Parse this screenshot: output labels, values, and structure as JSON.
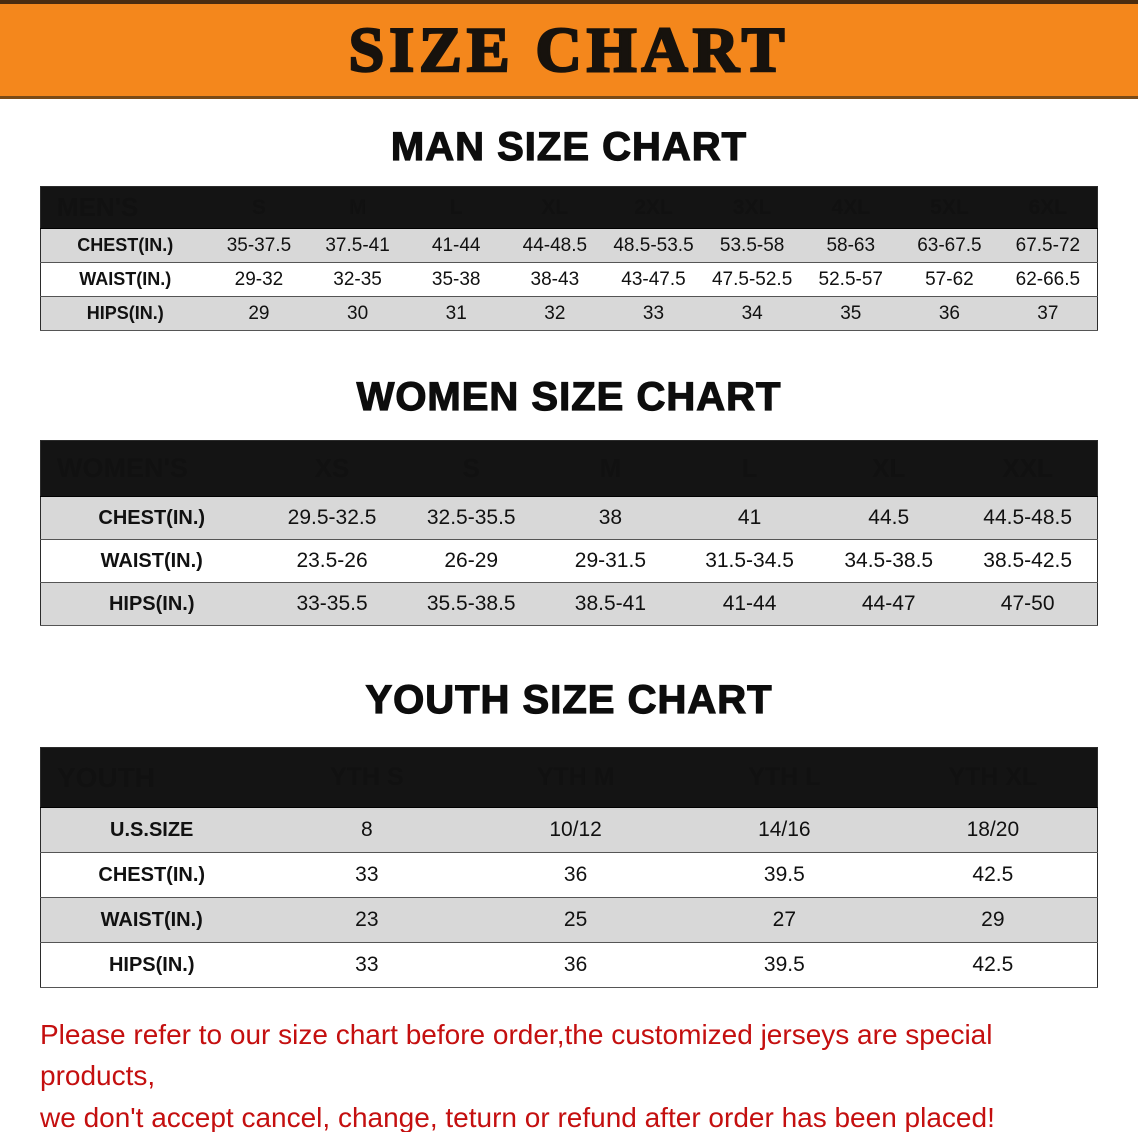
{
  "banner": {
    "title": "SIZE CHART"
  },
  "sections": [
    {
      "heading": "MAN SIZE CHART",
      "table": {
        "header_label": "MEN'S",
        "columns": [
          "S",
          "M",
          "L",
          "XL",
          "2XL",
          "3XL",
          "4XL",
          "5XL",
          "6XL"
        ],
        "rows": [
          {
            "label": "CHEST(IN.)",
            "values": [
              "35-37.5",
              "37.5-41",
              "41-44",
              "44-48.5",
              "48.5-53.5",
              "53.5-58",
              "58-63",
              "63-67.5",
              "67.5-72"
            ]
          },
          {
            "label": "WAIST(IN.)",
            "values": [
              "29-32",
              "32-35",
              "35-38",
              "38-43",
              "43-47.5",
              "47.5-52.5",
              "52.5-57",
              "57-62",
              "62-66.5"
            ]
          },
          {
            "label": "HIPS(IN.)",
            "values": [
              "29",
              "30",
              "31",
              "32",
              "33",
              "34",
              "35",
              "36",
              "37"
            ]
          }
        ]
      }
    },
    {
      "heading": "WOMEN SIZE CHART",
      "table": {
        "header_label": "WOMEN'S",
        "columns": [
          "XS",
          "S",
          "M",
          "L",
          "XL",
          "XXL"
        ],
        "rows": [
          {
            "label": "CHEST(IN.)",
            "values": [
              "29.5-32.5",
              "32.5-35.5",
              "38",
              "41",
              "44.5",
              "44.5-48.5"
            ]
          },
          {
            "label": "WAIST(IN.)",
            "values": [
              "23.5-26",
              "26-29",
              "29-31.5",
              "31.5-34.5",
              "34.5-38.5",
              "38.5-42.5"
            ]
          },
          {
            "label": "HIPS(IN.)",
            "values": [
              "33-35.5",
              "35.5-38.5",
              "38.5-41",
              "41-44",
              "44-47",
              "47-50"
            ]
          }
        ]
      }
    },
    {
      "heading": "YOUTH SIZE CHART",
      "table": {
        "header_label": "YOUTH",
        "columns": [
          "YTH S",
          "YTH M",
          "YTH L",
          "YTH XL"
        ],
        "rows": [
          {
            "label": "U.S.SIZE",
            "values": [
              "8",
              "10/12",
              "14/16",
              "18/20"
            ]
          },
          {
            "label": "CHEST(IN.)",
            "values": [
              "33",
              "36",
              "39.5",
              "42.5"
            ]
          },
          {
            "label": "WAIST(IN.)",
            "values": [
              "23",
              "25",
              "27",
              "29"
            ]
          },
          {
            "label": "HIPS(IN.)",
            "values": [
              "33",
              "36",
              "39.5",
              "42.5"
            ]
          }
        ]
      }
    }
  ],
  "disclaimer": {
    "line1": "Please refer to our size chart before order,the customized jerseys are special products,",
    "line2": "we don't accept cancel, change, teturn or refund after order has been placed!"
  },
  "colors": {
    "banner_bg": "#F4871C",
    "banner_text": "#17120d",
    "table_header_bg": "#141414",
    "table_header_text": "#ffffff",
    "row_alt_bg": "#d8d8d8",
    "disclaimer_text": "#c40f0f"
  }
}
